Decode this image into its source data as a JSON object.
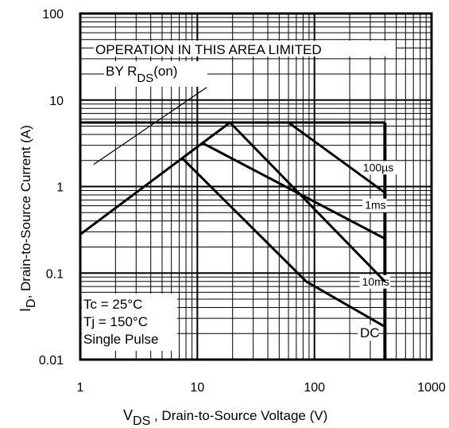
{
  "chart_data": {
    "type": "line",
    "xscale": "log",
    "yscale": "log",
    "xlim": [
      1,
      1000
    ],
    "ylim": [
      0.01,
      100
    ],
    "grid": true,
    "x_ticks": [
      "1",
      "10",
      "100",
      "1000"
    ],
    "y_ticks": [
      "100",
      "10",
      "1",
      "0.1",
      "0.01"
    ],
    "xlabel": {
      "main": "V",
      "sub": "DS",
      "rest": " , Drain-to-Source Voltage (V)"
    },
    "ylabel": {
      "main": "I",
      "sub": "D",
      "rest": ",  Drain-to-Source Current (A)"
    },
    "annotations": {
      "area_line1": "OPERATION IN THIS AREA LIMITED",
      "area_line2_prefix": "BY R",
      "area_line2_sub": "DS",
      "area_line2_suffix": "(on)",
      "conditions": [
        "Tc = 25°C",
        "Tj = 150°C",
        "Single Pulse"
      ]
    },
    "rdson_line": [
      [
        1.3,
        1.8
      ],
      [
        12,
        14
      ]
    ],
    "series": [
      {
        "name": "100µs",
        "points": [
          [
            1,
            0.28
          ],
          [
            19,
            5.5
          ],
          [
            60,
            5.5
          ],
          [
            400,
            0.85
          ]
        ],
        "label_at": [
          260,
          1.5
        ]
      },
      {
        "name": "1ms",
        "points": [
          [
            11,
            3.2
          ],
          [
            400,
            0.25
          ]
        ],
        "label_at": [
          270,
          0.55
        ]
      },
      {
        "name": "10ms",
        "points": [
          [
            7.5,
            2.1
          ],
          [
            85,
            0.08
          ],
          [
            400,
            0.024
          ]
        ],
        "label_at": [
          255,
          0.072
        ]
      },
      {
        "name": "DC",
        "points": [
          [
            19,
            5.5
          ],
          [
            400,
            0.08
          ]
        ],
        "label_at": [
          245,
          0.018
        ]
      }
    ],
    "limits": {
      "current_max": 5.5,
      "voltage_max": 400
    }
  }
}
